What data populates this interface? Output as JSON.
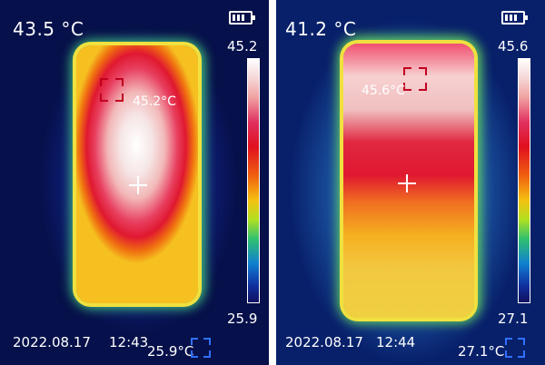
{
  "panels": [
    {
      "temperature": "43.5 °C",
      "scale_max": "45.2",
      "scale_min": "25.9",
      "hotspot_label": "45.2°C",
      "date": "2022.08.17",
      "time": "12:43",
      "min_label": "25.9°C"
    },
    {
      "temperature": "41.2 °C",
      "scale_max": "45.6",
      "scale_min": "27.1",
      "hotspot_label": "45.6°C",
      "date": "2022.08.17",
      "time": "12:44",
      "min_label": "27.1°C"
    }
  ],
  "icons": [
    "battery-icon",
    "hotspot-marker-icon",
    "center-crosshair-icon",
    "coldspot-marker-icon"
  ],
  "colors": {
    "hot": "#ffffff",
    "warm": "#e01020",
    "mid": "#f5c010",
    "cool": "#1080d0",
    "cold": "#06104a"
  }
}
